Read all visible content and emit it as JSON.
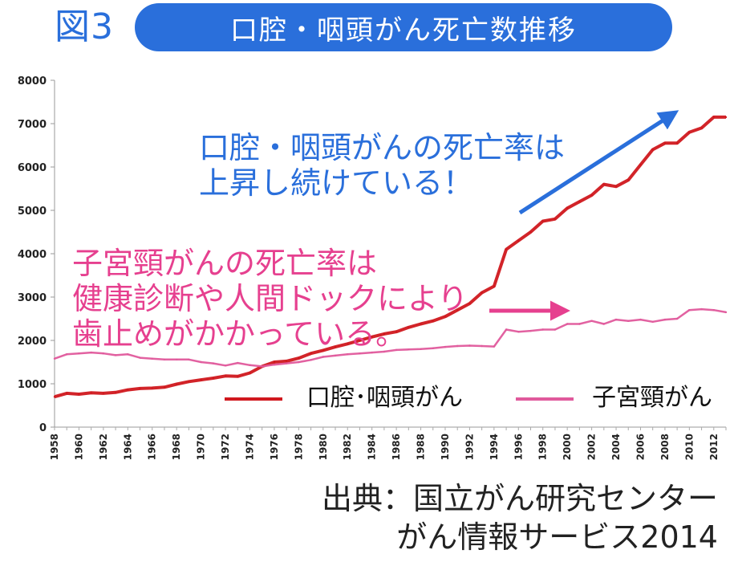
{
  "figure_label": "図3",
  "title": "口腔・咽頭がん死亡数推移",
  "annotations": {
    "oral": [
      "口腔・咽頭がんの死亡率は",
      "上昇し続けている！"
    ],
    "cervical": [
      "子宮頸がんの死亡率は",
      "健康診断や人間ドックにより",
      "歯止めがかかっている。"
    ]
  },
  "source": [
    "出典：国立がん研究センター",
    "がん情報サービス2014"
  ],
  "colors": {
    "oral": "#d0181e",
    "cervical": "#e05a9c",
    "accent_blue": "#2a6fdb",
    "cervical_arrow": "#e6408f"
  },
  "chart_data": {
    "type": "line",
    "title": "",
    "xlabel": "",
    "ylabel": "",
    "ylim": [
      0,
      8000
    ],
    "yticks": [
      "0",
      "1000",
      "2000",
      "3000",
      "4000",
      "5000",
      "6000",
      "7000",
      "8000"
    ],
    "xtick_labels": [
      "1958",
      "1960",
      "1962",
      "1964",
      "1966",
      "1968",
      "1970",
      "1972",
      "1974",
      "1976",
      "1978",
      "1980",
      "1982",
      "1984",
      "1986",
      "1988",
      "1990",
      "1992",
      "1994",
      "1996",
      "1998",
      "2000",
      "2002",
      "2004",
      "2006",
      "2008",
      "2010",
      "2012"
    ],
    "x": [
      1958,
      1959,
      1960,
      1961,
      1962,
      1963,
      1964,
      1965,
      1966,
      1967,
      1968,
      1969,
      1970,
      1971,
      1972,
      1973,
      1974,
      1975,
      1976,
      1977,
      1978,
      1979,
      1980,
      1981,
      1982,
      1983,
      1984,
      1985,
      1986,
      1987,
      1988,
      1989,
      1990,
      1991,
      1992,
      1993,
      1994,
      1995,
      1996,
      1997,
      1998,
      1999,
      2000,
      2001,
      2002,
      2003,
      2004,
      2005,
      2006,
      2007,
      2008,
      2009,
      2010,
      2011,
      2012,
      2013
    ],
    "legend_position": "bottom-right",
    "series": [
      {
        "name": "口腔･咽頭がん",
        "values": [
          700,
          780,
          760,
          790,
          780,
          800,
          860,
          890,
          900,
          920,
          990,
          1050,
          1090,
          1130,
          1180,
          1170,
          1250,
          1400,
          1500,
          1520,
          1590,
          1700,
          1770,
          1850,
          1920,
          2000,
          2080,
          2150,
          2200,
          2300,
          2380,
          2450,
          2550,
          2700,
          2850,
          3100,
          3250,
          4100,
          4300,
          4500,
          4750,
          4800,
          5050,
          5200,
          5350,
          5600,
          5550,
          5700,
          6050,
          6400,
          6550,
          6550,
          6800,
          6900,
          7150,
          7150
        ]
      },
      {
        "name": "子宮頸がん",
        "values": [
          1580,
          1680,
          1700,
          1720,
          1700,
          1660,
          1680,
          1600,
          1580,
          1560,
          1560,
          1560,
          1500,
          1470,
          1420,
          1480,
          1430,
          1400,
          1440,
          1470,
          1500,
          1550,
          1620,
          1650,
          1680,
          1700,
          1720,
          1740,
          1780,
          1790,
          1800,
          1820,
          1850,
          1870,
          1880,
          1870,
          1860,
          2250,
          2200,
          2220,
          2250,
          2250,
          2380,
          2380,
          2450,
          2380,
          2480,
          2450,
          2480,
          2430,
          2480,
          2500,
          2700,
          2720,
          2700,
          2650
        ]
      }
    ]
  }
}
